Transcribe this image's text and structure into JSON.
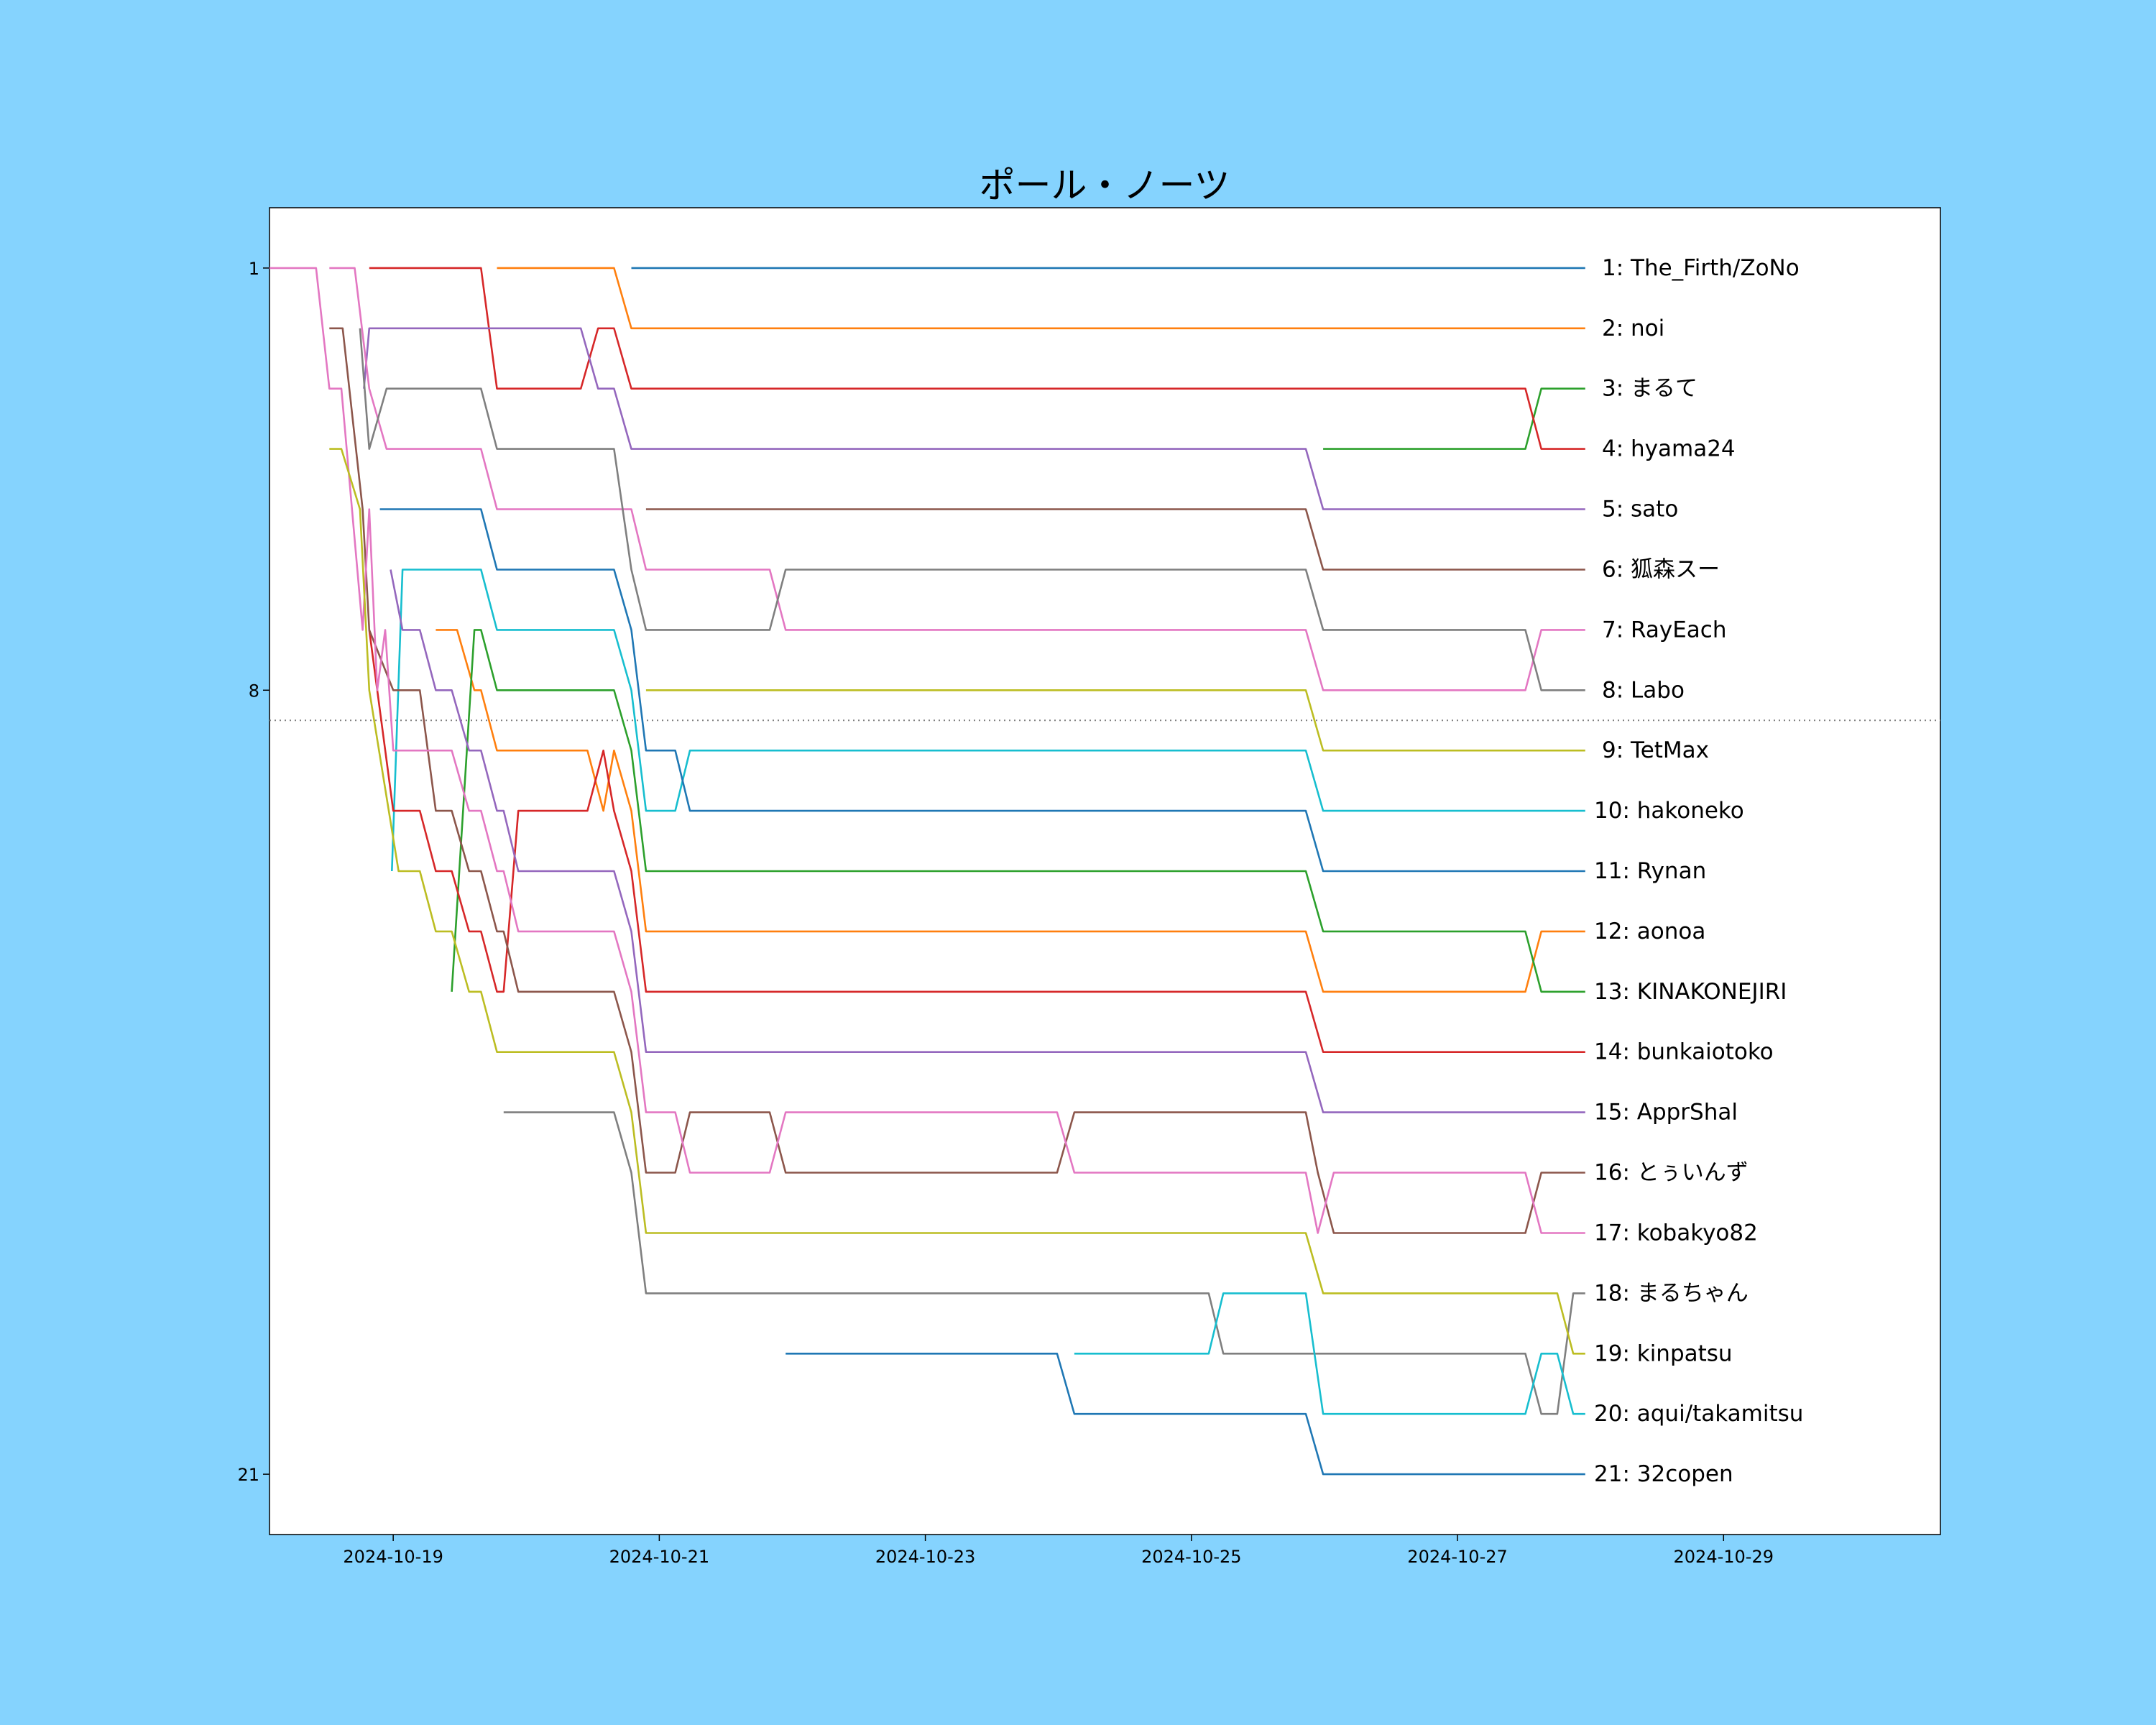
{
  "chart_data": {
    "type": "line",
    "title": "ポール・ノーツ",
    "xlabel": "",
    "ylabel": "",
    "x_unit": "days since 2024-10-19 00:00",
    "xlim": [
      -0.93,
      11.63
    ],
    "ylim": [
      22,
      0
    ],
    "y_inverted": true,
    "grid": false,
    "x_ticks": [
      {
        "value": 0,
        "label": "2024-10-19"
      },
      {
        "value": 2,
        "label": "2024-10-21"
      },
      {
        "value": 4,
        "label": "2024-10-23"
      },
      {
        "value": 6,
        "label": "2024-10-25"
      },
      {
        "value": 8,
        "label": "2024-10-27"
      },
      {
        "value": 10,
        "label": "2024-10-29"
      }
    ],
    "y_ticks": [
      {
        "value": 1,
        "label": "1"
      },
      {
        "value": 8,
        "label": "8"
      },
      {
        "value": 21,
        "label": "21"
      }
    ],
    "reference_line": {
      "y": 8.5,
      "style": "dotted",
      "color": "#808080"
    },
    "legend": "end-of-line labels on the right",
    "series": [
      {
        "name": "The_Firth/ZoNo",
        "label": "1: The_Firth/ZoNo",
        "color": "#1f77b4",
        "points": [
          [
            1.79,
            1
          ],
          [
            8.96,
            1
          ]
        ]
      },
      {
        "name": "noi",
        "label": "2: noi",
        "color": "#ff7f0e",
        "points": [
          [
            0.78,
            1
          ],
          [
            1.66,
            1
          ],
          [
            1.79,
            2
          ],
          [
            8.96,
            2
          ]
        ]
      },
      {
        "name": "まるて",
        "label": "3: まるて",
        "color": "#2ca02c",
        "points": [
          [
            6.99,
            4
          ],
          [
            8.51,
            4
          ],
          [
            8.63,
            3
          ],
          [
            8.96,
            3
          ]
        ]
      },
      {
        "name": "hyama24",
        "label": "4: hyama24",
        "color": "#d62728",
        "points": [
          [
            -0.18,
            1
          ],
          [
            0.66,
            1
          ],
          [
            0.78,
            3
          ],
          [
            1.41,
            3
          ],
          [
            1.54,
            2
          ],
          [
            1.66,
            2
          ],
          [
            1.79,
            3
          ],
          [
            8.51,
            3
          ],
          [
            8.63,
            4
          ],
          [
            8.96,
            4
          ]
        ]
      },
      {
        "name": "sato",
        "label": "5: sato",
        "color": "#9467bd",
        "points": [
          [
            -0.22,
            3
          ],
          [
            -0.18,
            2
          ],
          [
            1.41,
            2
          ],
          [
            1.54,
            3
          ],
          [
            1.66,
            3
          ],
          [
            1.79,
            4
          ],
          [
            6.86,
            4
          ],
          [
            6.99,
            5
          ],
          [
            8.96,
            5
          ]
        ]
      },
      {
        "name": "狐森スー",
        "label": "6: 狐森スー",
        "color": "#8c564b",
        "points": [
          [
            1.9,
            5
          ],
          [
            6.86,
            5
          ],
          [
            6.99,
            6
          ],
          [
            8.96,
            6
          ]
        ]
      },
      {
        "name": "RayEach",
        "label": "7: RayEach",
        "color": "#e377c2",
        "points": [
          [
            -0.48,
            1
          ],
          [
            -0.29,
            1
          ],
          [
            -0.18,
            3
          ],
          [
            -0.05,
            4
          ],
          [
            0.66,
            4
          ],
          [
            0.78,
            5
          ],
          [
            1.79,
            5
          ],
          [
            1.9,
            6
          ],
          [
            2.83,
            6
          ],
          [
            2.95,
            7
          ],
          [
            6.86,
            7
          ],
          [
            6.99,
            8
          ],
          [
            8.51,
            8
          ],
          [
            8.63,
            7
          ],
          [
            8.96,
            7
          ]
        ]
      },
      {
        "name": "Labo",
        "label": "8: Labo",
        "color": "#7f7f7f",
        "points": [
          [
            -0.25,
            2
          ],
          [
            -0.18,
            4
          ],
          [
            -0.05,
            3
          ],
          [
            0.66,
            3
          ],
          [
            0.78,
            4
          ],
          [
            1.66,
            4
          ],
          [
            1.79,
            6
          ],
          [
            1.9,
            7
          ],
          [
            2.83,
            7
          ],
          [
            2.95,
            6
          ],
          [
            6.86,
            6
          ],
          [
            6.99,
            7
          ],
          [
            8.51,
            7
          ],
          [
            8.63,
            8
          ],
          [
            8.96,
            8
          ]
        ]
      },
      {
        "name": "TetMax",
        "label": "9: TetMax",
        "color": "#bcbd22",
        "points": [
          [
            1.9,
            8
          ],
          [
            6.86,
            8
          ],
          [
            6.99,
            9
          ],
          [
            8.96,
            9
          ]
        ]
      },
      {
        "name": "hakoneko",
        "label": "10: hakoneko",
        "color": "#17becf",
        "points": [
          [
            -0.01,
            11
          ],
          [
            0.07,
            6
          ],
          [
            0.66,
            6
          ],
          [
            0.78,
            7
          ],
          [
            1.66,
            7
          ],
          [
            1.79,
            8
          ],
          [
            1.9,
            10
          ],
          [
            2.12,
            10
          ],
          [
            2.23,
            9
          ],
          [
            6.86,
            9
          ],
          [
            6.99,
            10
          ],
          [
            8.96,
            10
          ]
        ]
      },
      {
        "name": "Rynan",
        "label": "11: Rynan",
        "color": "#1f77b4",
        "points": [
          [
            -0.1,
            5
          ],
          [
            0.66,
            5
          ],
          [
            0.78,
            6
          ],
          [
            1.66,
            6
          ],
          [
            1.79,
            7
          ],
          [
            1.9,
            9
          ],
          [
            2.12,
            9
          ],
          [
            2.23,
            10
          ],
          [
            6.86,
            10
          ],
          [
            6.99,
            11
          ],
          [
            8.96,
            11
          ]
        ]
      },
      {
        "name": "aonoa",
        "label": "12: aonoa",
        "color": "#ff7f0e",
        "points": [
          [
            0.32,
            7
          ],
          [
            0.48,
            7
          ],
          [
            0.61,
            8
          ],
          [
            0.66,
            8
          ],
          [
            0.78,
            9
          ],
          [
            1.46,
            9
          ],
          [
            1.58,
            10
          ],
          [
            1.66,
            9
          ],
          [
            1.79,
            10
          ],
          [
            1.9,
            12
          ],
          [
            6.86,
            12
          ],
          [
            6.99,
            13
          ],
          [
            8.51,
            13
          ],
          [
            8.63,
            12
          ],
          [
            8.96,
            12
          ]
        ]
      },
      {
        "name": "KINAKONEJIRI",
        "label": "13: KINAKONEJIRI",
        "color": "#2ca02c",
        "points": [
          [
            0.44,
            13
          ],
          [
            0.61,
            7
          ],
          [
            0.66,
            7
          ],
          [
            0.78,
            8
          ],
          [
            1.66,
            8
          ],
          [
            1.79,
            9
          ],
          [
            1.9,
            11
          ],
          [
            6.86,
            11
          ],
          [
            6.99,
            12
          ],
          [
            8.51,
            12
          ],
          [
            8.63,
            13
          ],
          [
            8.96,
            13
          ]
        ]
      },
      {
        "name": "bunkaiotoko",
        "label": "14: bunkaiotoko",
        "color": "#d62728",
        "points": [
          [
            -0.18,
            7
          ],
          [
            0,
            10
          ],
          [
            0.2,
            10
          ],
          [
            0.32,
            11
          ],
          [
            0.44,
            11
          ],
          [
            0.57,
            12
          ],
          [
            0.66,
            12
          ],
          [
            0.78,
            13
          ],
          [
            0.83,
            13
          ],
          [
            0.94,
            10
          ],
          [
            1.46,
            10
          ],
          [
            1.58,
            9
          ],
          [
            1.66,
            10
          ],
          [
            1.79,
            11
          ],
          [
            1.9,
            13
          ],
          [
            6.86,
            13
          ],
          [
            6.99,
            14
          ],
          [
            8.96,
            14
          ]
        ]
      },
      {
        "name": "ApprShal",
        "label": "15: ApprShal",
        "color": "#9467bd",
        "points": [
          [
            -0.02,
            6
          ],
          [
            0.07,
            7
          ],
          [
            0.2,
            7
          ],
          [
            0.32,
            8
          ],
          [
            0.44,
            8
          ],
          [
            0.57,
            9
          ],
          [
            0.66,
            9
          ],
          [
            0.78,
            10
          ],
          [
            0.83,
            10
          ],
          [
            0.94,
            11
          ],
          [
            1.66,
            11
          ],
          [
            1.79,
            12
          ],
          [
            1.9,
            14
          ],
          [
            6.86,
            14
          ],
          [
            6.99,
            15
          ],
          [
            8.96,
            15
          ]
        ]
      },
      {
        "name": "とぅいんず",
        "label": "16: とぅいんず",
        "color": "#8c564b",
        "points": [
          [
            -0.48,
            2
          ],
          [
            -0.38,
            2
          ],
          [
            -0.23,
            5
          ],
          [
            -0.18,
            7
          ],
          [
            0,
            8
          ],
          [
            0.2,
            8
          ],
          [
            0.32,
            10
          ],
          [
            0.44,
            10
          ],
          [
            0.57,
            11
          ],
          [
            0.66,
            11
          ],
          [
            0.78,
            12
          ],
          [
            0.83,
            12
          ],
          [
            0.94,
            13
          ],
          [
            1.66,
            13
          ],
          [
            1.79,
            14
          ],
          [
            1.9,
            16
          ],
          [
            2.12,
            16
          ],
          [
            2.23,
            15
          ],
          [
            2.83,
            15
          ],
          [
            2.95,
            16
          ],
          [
            4.99,
            16
          ],
          [
            5.12,
            15
          ],
          [
            6.86,
            15
          ],
          [
            6.95,
            16
          ],
          [
            7.07,
            17
          ],
          [
            8.51,
            17
          ],
          [
            8.63,
            16
          ],
          [
            8.96,
            16
          ]
        ]
      },
      {
        "name": "kobakyo82",
        "label": "17: kobakyo82",
        "color": "#e377c2",
        "points": [
          [
            -0.93,
            1
          ],
          [
            -0.58,
            1
          ],
          [
            -0.48,
            3
          ],
          [
            -0.39,
            3
          ],
          [
            -0.23,
            7
          ],
          [
            -0.18,
            5
          ],
          [
            -0.12,
            8
          ],
          [
            -0.06,
            7
          ],
          [
            0,
            9
          ],
          [
            0.44,
            9
          ],
          [
            0.57,
            10
          ],
          [
            0.66,
            10
          ],
          [
            0.78,
            11
          ],
          [
            0.83,
            11
          ],
          [
            0.94,
            12
          ],
          [
            1.66,
            12
          ],
          [
            1.79,
            13
          ],
          [
            1.9,
            15
          ],
          [
            2.12,
            15
          ],
          [
            2.23,
            16
          ],
          [
            2.83,
            16
          ],
          [
            2.95,
            15
          ],
          [
            4.99,
            15
          ],
          [
            5.12,
            16
          ],
          [
            6.86,
            16
          ],
          [
            6.95,
            17
          ],
          [
            7.07,
            16
          ],
          [
            8.51,
            16
          ],
          [
            8.63,
            17
          ],
          [
            8.96,
            17
          ]
        ]
      },
      {
        "name": "まるちゃん",
        "label": "18: まるちゃん",
        "color": "#7f7f7f",
        "points": [
          [
            0.83,
            15
          ],
          [
            1.66,
            15
          ],
          [
            1.79,
            16
          ],
          [
            1.9,
            18
          ],
          [
            6.13,
            18
          ],
          [
            6.24,
            19
          ],
          [
            8.51,
            19
          ],
          [
            8.63,
            20
          ],
          [
            8.75,
            20
          ],
          [
            8.87,
            18
          ],
          [
            8.96,
            18
          ]
        ]
      },
      {
        "name": "kinpatsu",
        "label": "19: kinpatsu",
        "color": "#bcbd22",
        "points": [
          [
            -0.48,
            4
          ],
          [
            -0.39,
            4
          ],
          [
            -0.25,
            5
          ],
          [
            -0.18,
            8
          ],
          [
            0.04,
            11
          ],
          [
            0.2,
            11
          ],
          [
            0.32,
            12
          ],
          [
            0.44,
            12
          ],
          [
            0.57,
            13
          ],
          [
            0.66,
            13
          ],
          [
            0.78,
            14
          ],
          [
            1.66,
            14
          ],
          [
            1.79,
            15
          ],
          [
            1.9,
            17
          ],
          [
            6.86,
            17
          ],
          [
            6.99,
            18
          ],
          [
            8.75,
            18
          ],
          [
            8.87,
            19
          ],
          [
            8.96,
            19
          ]
        ]
      },
      {
        "name": "aqui/takamitsu",
        "label": "20: aqui/takamitsu",
        "color": "#17becf",
        "points": [
          [
            5.12,
            19
          ],
          [
            6.13,
            19
          ],
          [
            6.24,
            18
          ],
          [
            6.86,
            18
          ],
          [
            6.99,
            20
          ],
          [
            8.51,
            20
          ],
          [
            8.63,
            19
          ],
          [
            8.75,
            19
          ],
          [
            8.87,
            20
          ],
          [
            8.96,
            20
          ]
        ]
      },
      {
        "name": "32copen",
        "label": "21: 32copen",
        "color": "#1f77b4",
        "points": [
          [
            2.95,
            19
          ],
          [
            4.99,
            19
          ],
          [
            5.12,
            20
          ],
          [
            6.86,
            20
          ],
          [
            6.99,
            21
          ],
          [
            8.96,
            21
          ]
        ]
      }
    ]
  }
}
